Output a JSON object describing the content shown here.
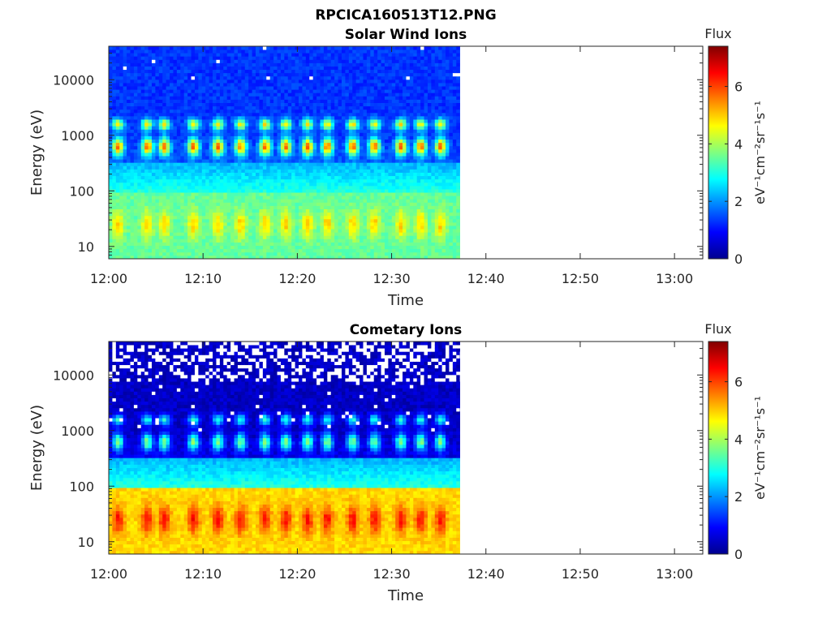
{
  "figure": {
    "title": "RPCICA160513T12.PNG"
  },
  "chart_data": [
    {
      "type": "heatmap",
      "title": "Solar Wind Ions",
      "xlabel": "Time",
      "ylabel": "Energy (eV)",
      "x_ticks": [
        "12:00",
        "12:10",
        "12:20",
        "12:30",
        "12:40",
        "12:50",
        "13:00"
      ],
      "x_tick_minutes": [
        0,
        10,
        20,
        30,
        40,
        50,
        60
      ],
      "xlim_minutes": [
        0,
        63
      ],
      "data_extent_minutes": [
        0,
        37.3
      ],
      "y_scale": "log",
      "y_ticks": [
        "10",
        "100",
        "1000",
        "10000"
      ],
      "y_tick_values": [
        10,
        100,
        1000,
        10000
      ],
      "ylim": [
        6,
        40000
      ],
      "burst_times_minutes": [
        0.8,
        3.9,
        5.7,
        8.8,
        11.4,
        13.8,
        16.4,
        18.6,
        20.9,
        23.0,
        25.7,
        28.0,
        30.8,
        32.9,
        35.0
      ],
      "low_band_level": 4.8,
      "mid_band_level": 4.4,
      "background_level": 1.3,
      "colorbar": {
        "title": "Flux",
        "label": "eV⁻¹cm⁻²sr⁻¹s⁻¹",
        "range": [
          0,
          7.4
        ],
        "ticks": [
          "0",
          "2",
          "4",
          "6"
        ],
        "tick_values": [
          0,
          2,
          4,
          6
        ]
      }
    },
    {
      "type": "heatmap",
      "title": "Cometary Ions",
      "xlabel": "Time",
      "ylabel": "Energy (eV)",
      "x_ticks": [
        "12:00",
        "12:10",
        "12:20",
        "12:30",
        "12:40",
        "12:50",
        "13:00"
      ],
      "x_tick_minutes": [
        0,
        10,
        20,
        30,
        40,
        50,
        60
      ],
      "xlim_minutes": [
        0,
        63
      ],
      "data_extent_minutes": [
        0,
        37.3
      ],
      "y_scale": "log",
      "y_ticks": [
        "10",
        "100",
        "1000",
        "10000"
      ],
      "y_tick_values": [
        10,
        100,
        1000,
        10000
      ],
      "ylim": [
        6,
        40000
      ],
      "burst_times_minutes": [
        0.8,
        3.9,
        5.7,
        8.8,
        11.4,
        13.8,
        16.4,
        18.6,
        20.9,
        23.0,
        25.7,
        28.0,
        30.8,
        32.9,
        35.0
      ],
      "low_band_level": 6.2,
      "mid_band_level": 3.2,
      "background_level": 0.5,
      "colorbar": {
        "title": "Flux",
        "label": "eV⁻¹cm⁻²sr⁻¹s⁻¹",
        "range": [
          0,
          7.4
        ],
        "ticks": [
          "0",
          "2",
          "4",
          "6"
        ],
        "tick_values": [
          0,
          2,
          4,
          6
        ]
      }
    }
  ]
}
